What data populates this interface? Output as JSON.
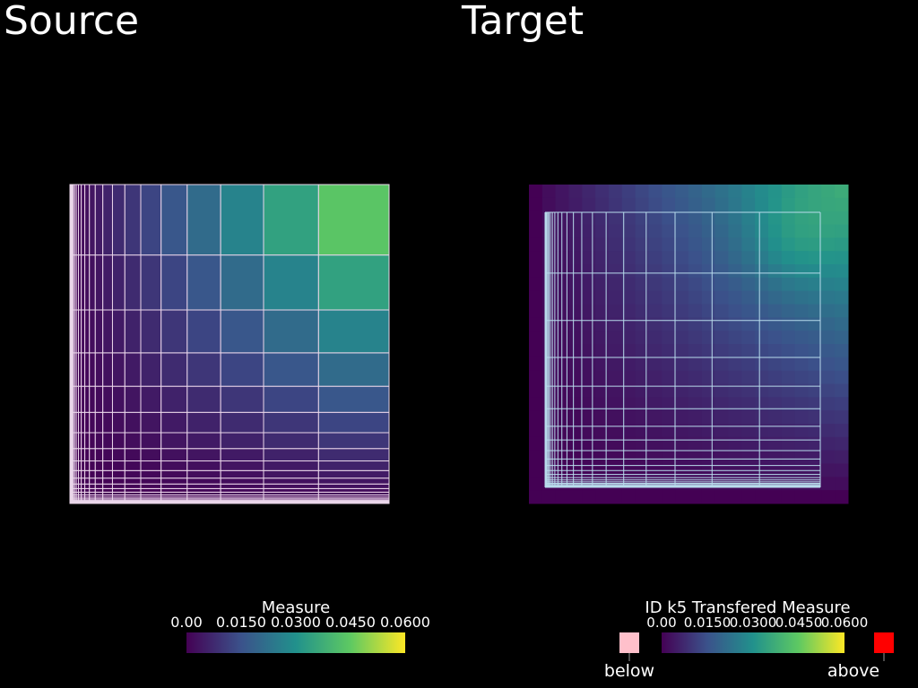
{
  "panels": [
    {
      "title": "Source",
      "colorbar": {
        "title": "Measure",
        "lim": [
          0,
          0.06
        ],
        "ticks": [
          {
            "value": 0,
            "label": "0.00"
          },
          {
            "value": 0.015,
            "label": "0.0150"
          },
          {
            "value": 0.03,
            "label": "0.0300"
          },
          {
            "value": 0.045,
            "label": "0.0450"
          },
          {
            "value": 0.06,
            "label": "0.0600"
          }
        ]
      }
    },
    {
      "title": "Target",
      "colorbar": {
        "title": "ID k5 Transfered Measure",
        "lim": [
          0,
          0.06
        ],
        "ticks": [
          {
            "value": 0,
            "label": "0.00"
          },
          {
            "value": 0.015,
            "label": "0.0150"
          },
          {
            "value": 0.03,
            "label": "0.0300"
          },
          {
            "value": 0.045,
            "label": "0.0450"
          },
          {
            "value": 0.06,
            "label": "0.0600"
          }
        ],
        "below_label": "below",
        "above_label": "above"
      }
    }
  ]
}
